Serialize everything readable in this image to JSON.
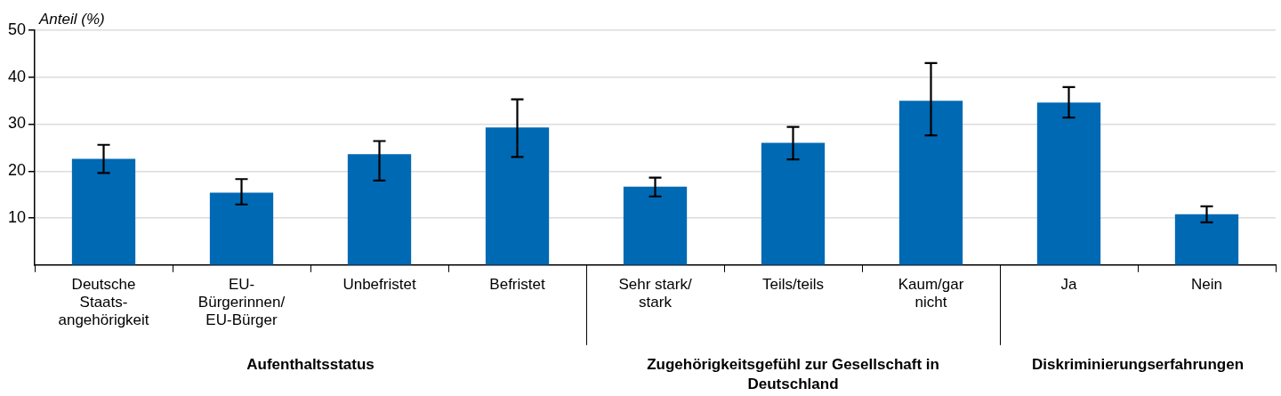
{
  "chart_data": {
    "type": "bar",
    "ylabel": "Anteil (%)",
    "categories": [
      "Deutsche Staats-angehörigkeit",
      "EU-Bürgerinnen/EU-Bürger",
      "Unbefristet",
      "Befristet",
      "Sehr stark/stark",
      "Teils/teils",
      "Kaum/gar nicht",
      "Ja",
      "Nein"
    ],
    "values": [
      22.6,
      15.4,
      23.6,
      29.3,
      16.7,
      26.0,
      35.0,
      34.6,
      10.8
    ],
    "errors": [
      [
        19.6,
        25.6
      ],
      [
        12.9,
        18.3
      ],
      [
        18.0,
        26.4
      ],
      [
        23.0,
        35.3
      ],
      [
        14.6,
        18.6
      ],
      [
        22.5,
        29.4
      ],
      [
        27.6,
        43.0
      ],
      [
        31.4,
        37.9
      ],
      [
        9.1,
        12.5
      ]
    ],
    "color": "#0069b4",
    "ylim": [
      0,
      50
    ],
    "yticks": [
      10,
      20,
      30,
      40,
      50
    ],
    "grid": "y",
    "annotations": [
      "Aufenthaltsstatus",
      "Zugehörigkeitsgefühl zur Gesellschaft in Deutschland",
      "Diskriminierungserfahrungen"
    ]
  }
}
